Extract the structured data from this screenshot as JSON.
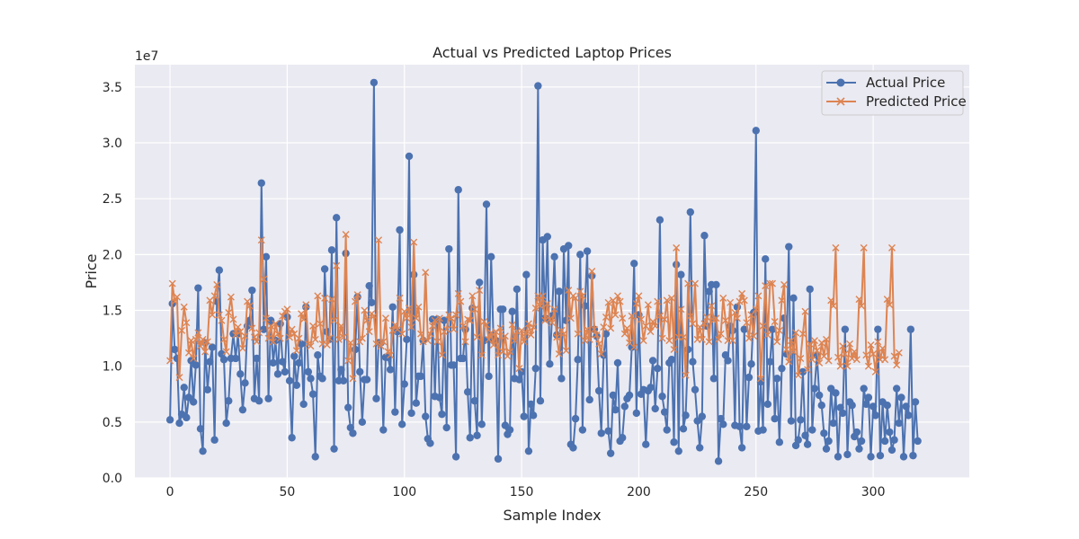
{
  "chart_data": {
    "type": "line",
    "title": "Actual vs Predicted Laptop Prices",
    "xlabel": "Sample Index",
    "ylabel": "Price",
    "y_scale_label": "1e7",
    "xlim": [
      -15,
      341
    ],
    "ylim": [
      0,
      37000000
    ],
    "x_ticks": [
      0,
      50,
      100,
      150,
      200,
      250,
      300
    ],
    "y_ticks": [
      0,
      5000000,
      10000000,
      15000000,
      20000000,
      25000000,
      30000000,
      35000000
    ],
    "y_tick_labels": [
      "0.0",
      "0.5",
      "1.0",
      "1.5",
      "2.0",
      "2.5",
      "3.0",
      "3.5"
    ],
    "grid": true,
    "legend_position": "top-right",
    "series": [
      {
        "name": "Actual Price",
        "color": "#4c72b0",
        "marker": "circle",
        "values": [
          5.2,
          15.6,
          11.5,
          10.7,
          4.9,
          5.7,
          8.1,
          5.4,
          7.2,
          10.5,
          6.8,
          10.1,
          17.0,
          4.4,
          2.4,
          12.1,
          7.9,
          10.4,
          11.7,
          3.4,
          15.8,
          18.6,
          11.1,
          10.6,
          4.9,
          6.9,
          10.7,
          12.9,
          10.7,
          12.9,
          9.3,
          6.1,
          8.5,
          13.6,
          14.1,
          16.8,
          7.1,
          10.7,
          6.9,
          26.4,
          13.3,
          19.8,
          7.1,
          14.1,
          10.3,
          12.3,
          9.3,
          13.8,
          10.4,
          9.5,
          14.4,
          8.7,
          3.6,
          10.9,
          8.3,
          10.3,
          12.0,
          6.6,
          15.3,
          9.5,
          8.9,
          7.5,
          1.9,
          11.0,
          9.1,
          8.9,
          18.7,
          13.1,
          12.4,
          20.4,
          2.6,
          23.3,
          8.7,
          9.7,
          8.7,
          20.1,
          6.3,
          4.5,
          4.0,
          11.5,
          16.2,
          9.5,
          5.0,
          8.8,
          8.8,
          17.2,
          15.7,
          35.4,
          7.1,
          12.1,
          12.1,
          4.3,
          10.8,
          10.8,
          9.7,
          15.3,
          5.9,
          13.1,
          22.2,
          4.8,
          8.4,
          12.4,
          28.8,
          5.8,
          18.2,
          6.7,
          9.1,
          9.1,
          12.3,
          5.5,
          3.5,
          3.1,
          14.2,
          7.3,
          14.2,
          7.2,
          5.7,
          14.1,
          4.5,
          20.5,
          10.1,
          10.1,
          1.9,
          25.8,
          10.7,
          10.7,
          13.3,
          7.7,
          3.6,
          15.2,
          6.9,
          3.8,
          17.5,
          4.8,
          12.3,
          24.5,
          9.1,
          19.8,
          12.3,
          12.3,
          1.7,
          15.1,
          15.1,
          4.7,
          3.9,
          4.3,
          14.9,
          8.9,
          16.9,
          8.8,
          9.5,
          5.5,
          18.2,
          2.4,
          6.6,
          5.6,
          9.8,
          35.1,
          6.9,
          21.3,
          14.3,
          21.6,
          10.2,
          14.5,
          19.8,
          12.8,
          16.7,
          8.9,
          20.5,
          14.1,
          20.8,
          3.0,
          2.7,
          5.3,
          10.6,
          20.0,
          4.3,
          15.4,
          20.3,
          7.0,
          18.1,
          13.3,
          12.7,
          7.8,
          4.0,
          11.0,
          12.9,
          4.2,
          2.2,
          7.4,
          6.1,
          10.3,
          3.3,
          3.6,
          6.4,
          7.1,
          7.4,
          11.7,
          19.2,
          5.8,
          14.6,
          7.5,
          7.9,
          3.0,
          7.8,
          8.1,
          10.5,
          6.2,
          9.8,
          23.1,
          7.3,
          5.9,
          4.3,
          10.3,
          10.6,
          3.2,
          19.1,
          2.4,
          18.2,
          4.4,
          5.6,
          11.5,
          23.8,
          10.4,
          7.9,
          5.1,
          2.7,
          5.5,
          21.7,
          13.6,
          16.7,
          17.3,
          8.9,
          17.3,
          1.5,
          5.3,
          4.8,
          11.0,
          10.5,
          13.6,
          13.2,
          4.7,
          15.3,
          4.6,
          2.7,
          13.3,
          4.6,
          9.0,
          10.2,
          14.8,
          31.1,
          4.2,
          8.6,
          4.3,
          19.6,
          6.6,
          10.4,
          13.3,
          5.3,
          8.9,
          3.2,
          9.8,
          14.3,
          11.1,
          20.7,
          5.1,
          16.1,
          2.9,
          3.4,
          5.2,
          9.5,
          3.8,
          3.0,
          16.9,
          4.3,
          8.0,
          11.0,
          7.4,
          6.5,
          4.0,
          2.6,
          3.3,
          8.0,
          4.9,
          7.6,
          1.9,
          6.3,
          5.8,
          13.3,
          2.1,
          6.8,
          6.5,
          3.7,
          4.1,
          2.6,
          3.3,
          8.0,
          6.6,
          7.2,
          1.9,
          6.4,
          5.6,
          13.3,
          2.0,
          6.8,
          3.3,
          6.5,
          4.1,
          2.5,
          3.4,
          8.0,
          4.9,
          7.2,
          1.9,
          6.4,
          5.6,
          13.3,
          2.0,
          6.8,
          3.3
        ]
      },
      {
        "name": "Predicted Price",
        "color": "#dd8452",
        "marker": "x",
        "values": [
          10.5,
          17.4,
          15.8,
          16.2,
          9.0,
          13.2,
          15.3,
          13.9,
          11.2,
          12.3,
          10.7,
          12.4,
          13.0,
          11.8,
          12.4,
          11.3,
          12.2,
          15.9,
          14.6,
          16.3,
          17.3,
          14.6,
          14.1,
          12.4,
          11.3,
          14.8,
          16.2,
          14.2,
          12.8,
          13.5,
          13.1,
          11.6,
          12.7,
          15.8,
          15.4,
          13.4,
          12.6,
          12.2,
          13.0,
          21.3,
          17.8,
          14.3,
          12.5,
          13.6,
          12.2,
          13.8,
          12.9,
          12.5,
          14.5,
          14.9,
          15.1,
          12.6,
          13.3,
          12.9,
          11.4,
          12.5,
          14.7,
          14.2,
          15.5,
          12.0,
          11.8,
          13.6,
          12.4,
          16.3,
          13.8,
          12.0,
          16.1,
          11.9,
          12.5,
          16.0,
          14.1,
          19.0,
          12.4,
          13.6,
          12.6,
          21.8,
          10.5,
          12.1,
          8.9,
          15.8,
          16.4,
          12.2,
          12.5,
          15.0,
          14.1,
          13.1,
          14.7,
          14.5,
          12.0,
          21.3,
          11.8,
          12.2,
          14.3,
          11.3,
          11.0,
          13.2,
          13.7,
          13.3,
          16.1,
          12.9,
          14.9,
          14.3,
          15.2,
          13.5,
          21.1,
          14.3,
          15.3,
          12.9,
          12.2,
          18.4,
          12.3,
          12.9,
          13.6,
          14.1,
          12.2,
          14.3,
          11.0,
          13.1,
          13.3,
          14.6,
          14.3,
          13.3,
          14.6,
          16.5,
          15.8,
          13.6,
          12.2,
          14.2,
          14.1,
          16.3,
          15.1,
          12.6,
          16.8,
          11.0,
          14.0,
          13.7,
          12.4,
          13.0,
          11.9,
          13.1,
          11.0,
          13.4,
          11.3,
          12.7,
          10.9,
          11.3,
          13.7,
          12.3,
          13.1,
          9.8,
          13.2,
          12.2,
          13.0,
          13.8,
          12.8,
          13.5,
          15.2,
          16.3,
          15.4,
          16.3,
          14.1,
          15.6,
          14.2,
          13.9,
          15.1,
          12.6,
          11.1,
          13.2,
          12.9,
          11.4,
          16.8,
          14.3,
          16.3,
          16.1,
          12.9,
          16.7,
          16.3,
          12.3,
          13.3,
          12.4,
          18.5,
          13.3,
          12.8,
          12.0,
          11.1,
          13.5,
          14.4,
          15.7,
          13.4,
          15.9,
          14.6,
          16.3,
          15.8,
          14.3,
          12.9,
          13.4,
          12.1,
          14.5,
          11.7,
          15.6,
          16.3,
          14.2,
          12.3,
          13.6,
          15.5,
          13.1,
          14.0,
          13.6,
          15.8,
          14.5,
          12.5,
          14.2,
          15.9,
          12.3,
          16.1,
          11.5,
          20.6,
          12.6,
          15.1,
          12.6,
          9.2,
          17.4,
          14.5,
          13.8,
          17.4,
          12.4,
          13.5,
          12.4,
          13.8,
          14.4,
          12.2,
          15.4,
          14.1,
          14.3,
          12.4,
          12.9,
          16.1,
          14.1,
          12.3,
          15.7,
          12.3,
          14.8,
          14.3,
          15.8,
          16.5,
          15.9,
          13.9,
          12.5,
          14.6,
          12.7,
          15.1,
          16.3,
          8.9,
          13.6,
          17.2,
          12.8,
          17.4,
          17.4,
          14.0,
          12.2,
          13.2,
          15.9,
          17.3,
          11.5,
          10.4,
          12.3,
          11.3,
          13.0,
          9.2,
          10.7,
          12.9,
          14.9,
          9.7,
          12.0,
          10.6,
          12.3,
          11.4,
          10.3,
          12.1,
          10.9,
          12.4,
          10.5,
          15.9,
          15.4,
          20.6,
          10.8,
          10.0,
          11.8,
          11.1,
          10.0,
          12.0,
          10.7,
          11.3,
          10.6,
          16.0,
          15.4,
          20.6,
          11.0,
          10.0,
          11.9,
          11.1,
          9.5,
          12.2,
          10.6,
          11.6,
          10.6,
          16.0,
          15.5,
          20.6,
          10.9,
          10.1,
          11.2
        ]
      }
    ]
  }
}
